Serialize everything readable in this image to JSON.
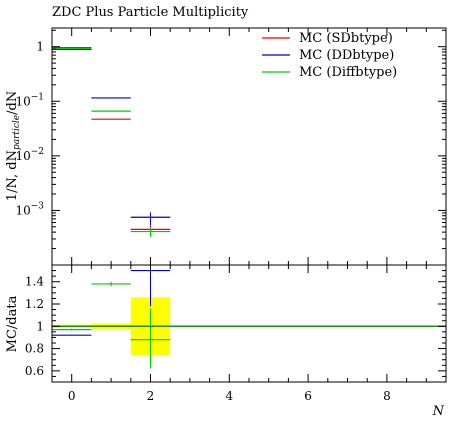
{
  "chart_data": [
    {
      "type": "line",
      "title": "ZDC Plus Particle Multiplicity",
      "ylabel": "1/N, dN_particle/dN",
      "yscale": "log",
      "xlim": [
        -0.5,
        9.5
      ],
      "ylim": [
        0.0001,
        2.2
      ],
      "y_ticks": [
        {
          "value": 1,
          "label": "1"
        },
        {
          "value": 0.1,
          "label": "10^-1"
        },
        {
          "value": 0.01,
          "label": "10^-2"
        },
        {
          "value": 0.001,
          "label": "10^-3"
        }
      ],
      "legend_position": "top-right",
      "series": [
        {
          "name": "MC (SDbtype)",
          "color": "#ee0000",
          "points": [
            {
              "x": [
                -0.5,
                0.5
              ],
              "y": 0.96
            },
            {
              "x": [
                0.5,
                1.5
              ],
              "y": 0.047
            },
            {
              "x": [
                1.5,
                2.5
              ],
              "y": 0.00045
            }
          ]
        },
        {
          "name": "MC (DDbtype)",
          "color": "#0000cc",
          "points": [
            {
              "x": [
                -0.5,
                0.5
              ],
              "y": 0.89
            },
            {
              "x": [
                0.5,
                1.5
              ],
              "y": 0.115
            },
            {
              "x": [
                1.5,
                2.5
              ],
              "y": 0.00075
            }
          ]
        },
        {
          "name": "MC (Diffbtype)",
          "color": "#00cc00",
          "points": [
            {
              "x": [
                -0.5,
                0.5
              ],
              "y": 0.93
            },
            {
              "x": [
                0.5,
                1.5
              ],
              "y": 0.066
            },
            {
              "x": [
                1.5,
                2.5
              ],
              "y": 0.00041
            }
          ]
        }
      ]
    },
    {
      "type": "line",
      "xlabel": "N",
      "ylabel": "MC/data",
      "xlim": [
        -0.5,
        9.5
      ],
      "ylim": [
        0.5,
        1.55
      ],
      "x_ticks": [
        0,
        2,
        4,
        6,
        8
      ],
      "y_ticks": [
        0.6,
        0.8,
        1,
        1.2,
        1.4
      ],
      "reference_line": 1,
      "reference_color": "#228B22",
      "uncertainty_band_color": "#ffff00",
      "uncertainty_band": [
        {
          "x": [
            -0.5,
            0.5
          ],
          "low": 0.985,
          "high": 1.015
        },
        {
          "x": [
            0.5,
            1.5
          ],
          "low": 0.975,
          "high": 1.025
        },
        {
          "x": [
            1.5,
            2.5
          ],
          "low": 0.74,
          "high": 1.26
        }
      ],
      "series": [
        {
          "name": "MC (DDbtype)",
          "color": "#0000cc",
          "points": [
            {
              "x": [
                -0.5,
                0.5
              ],
              "y": 0.92
            },
            {
              "x": [
                1.5,
                2.5
              ],
              "y": 1.5
            }
          ]
        },
        {
          "name": "MC (Diffbtype)",
          "color": "#00cc00",
          "points": [
            {
              "x": [
                -0.5,
                0.5
              ],
              "y": 0.97
            },
            {
              "x": [
                0.5,
                1.5
              ],
              "y": 1.38
            },
            {
              "x": [
                1.5,
                2.5
              ],
              "y": 0.88
            }
          ]
        }
      ]
    }
  ]
}
